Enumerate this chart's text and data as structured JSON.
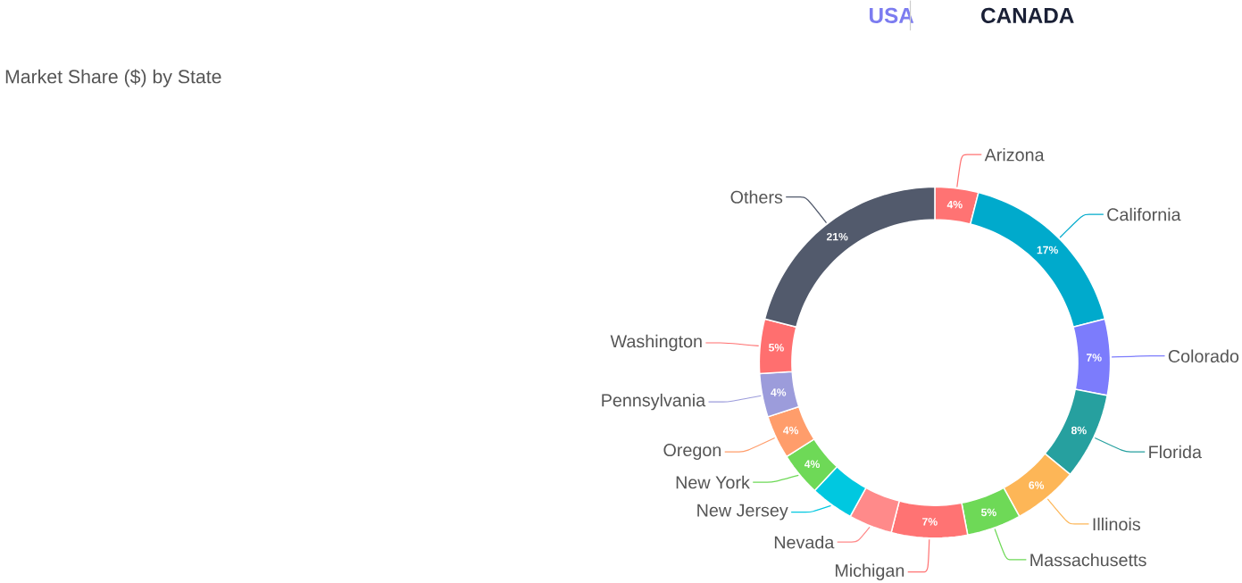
{
  "chart_data": {
    "type": "donut",
    "title": "Market Share ($) by State",
    "annotations": [
      "USA",
      "CANADA"
    ],
    "categories": [
      "Arizona",
      "California",
      "Colorado",
      "Florida",
      "Illinois",
      "Massachusetts",
      "Michigan",
      "Nevada",
      "New Jersey",
      "New York",
      "Oregon",
      "Pennsylvania",
      "Washington",
      "Others"
    ],
    "values": [
      4,
      17,
      7,
      8,
      6,
      5,
      7,
      4,
      4,
      4,
      4,
      4,
      5,
      21
    ],
    "colors": [
      "#ff7373",
      "#00aacc",
      "#7c7cfc",
      "#26a09f",
      "#fdb657",
      "#6ed957",
      "#ff7373",
      "#ff8a8a",
      "#00c8e0",
      "#6ed957",
      "#ff9d6b",
      "#9c9cdb",
      "#ff6f6f",
      "#525a6c"
    ],
    "value_labels": [
      "4%",
      "17%",
      "7%",
      "8%",
      "6%",
      "5%",
      "7%",
      null,
      null,
      "4%",
      "4%",
      "4%",
      "5%",
      "21%"
    ]
  }
}
